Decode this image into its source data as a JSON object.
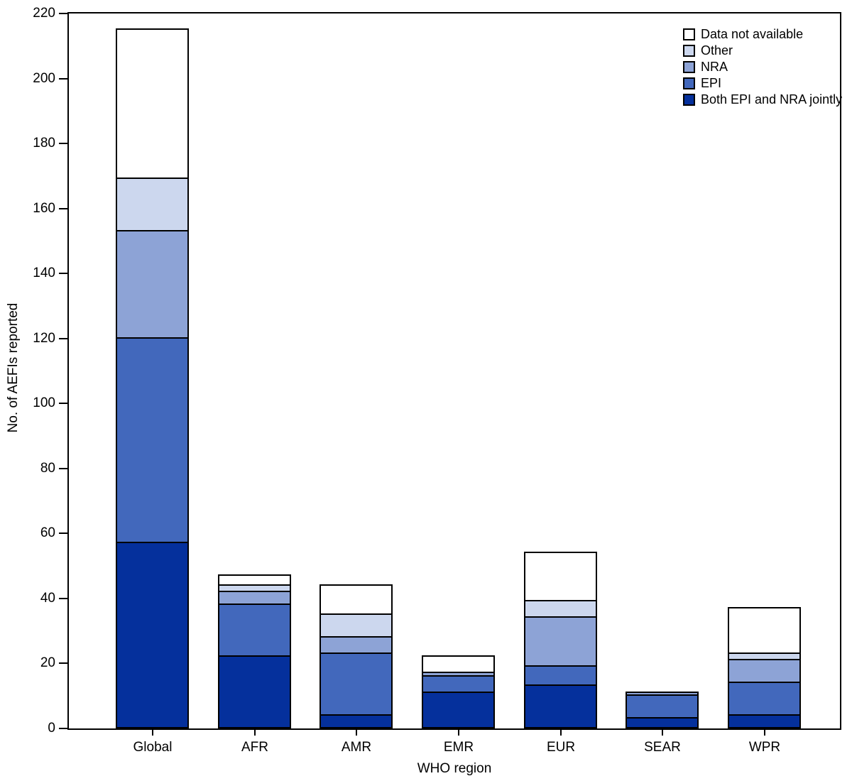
{
  "chart_data": {
    "type": "bar",
    "stacked": true,
    "xlabel": "WHO region",
    "ylabel": "No. of AEFIs reported",
    "categories": [
      "Global",
      "AFR",
      "AMR",
      "EMR",
      "EUR",
      "SEAR",
      "WPR"
    ],
    "series": [
      {
        "name": "Both EPI and NRA jointly",
        "color": "#05309c",
        "values": [
          57,
          22,
          4,
          11,
          13,
          3,
          4
        ]
      },
      {
        "name": "EPI",
        "color": "#4268bc",
        "values": [
          63,
          16,
          19,
          5,
          6,
          7,
          10
        ]
      },
      {
        "name": "NRA",
        "color": "#8da3d6",
        "values": [
          33,
          4,
          5,
          1,
          15,
          1,
          7
        ]
      },
      {
        "name": "Other",
        "color": "#ccd7ee",
        "values": [
          16,
          2,
          7,
          0,
          5,
          0,
          2
        ]
      },
      {
        "name": "Data not available",
        "color": "#ffffff",
        "values": [
          46,
          3,
          9,
          5,
          15,
          0,
          14
        ]
      }
    ],
    "legend_labels_top_to_bottom": [
      "Data not available",
      "Other",
      "NRA",
      "EPI",
      "Both EPI and NRA jointly"
    ],
    "legend_position": "top-right",
    "ylim": [
      0,
      220
    ],
    "ytick_step": 20,
    "yticks": [
      "0",
      "20",
      "40",
      "60",
      "80",
      "100",
      "120",
      "140",
      "160",
      "180",
      "200",
      "220"
    ],
    "grid": false,
    "frame": true,
    "bar_outline_color": "#000000"
  }
}
